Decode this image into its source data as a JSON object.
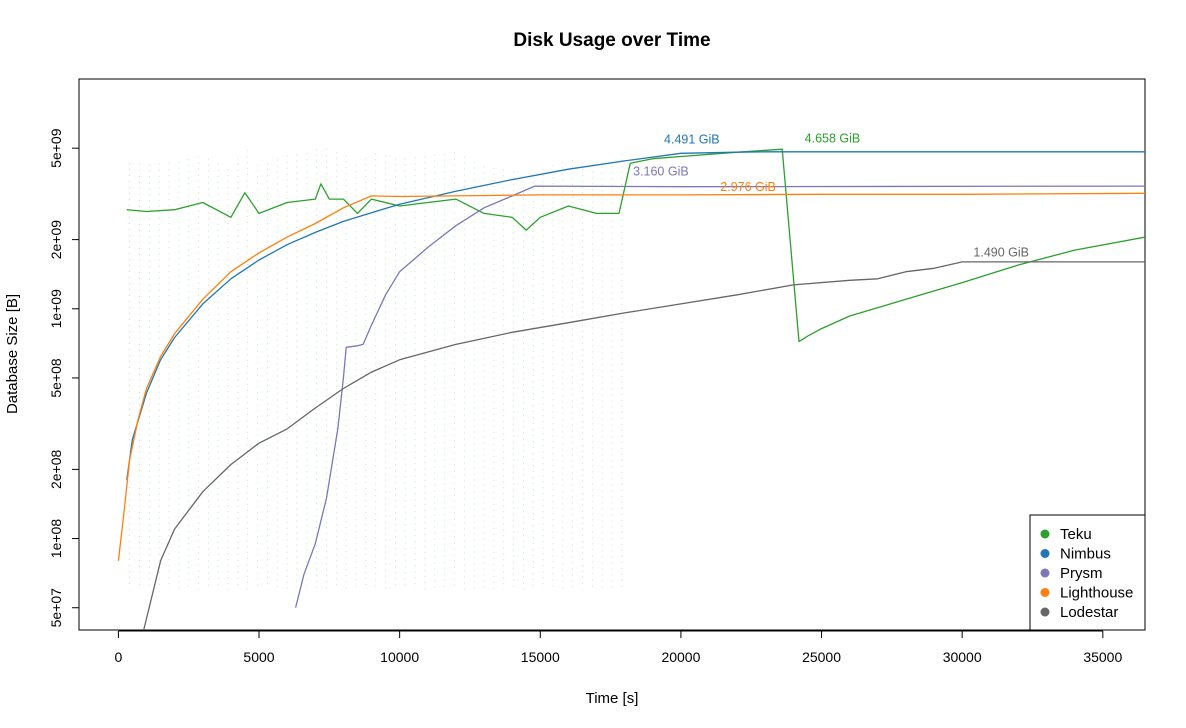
{
  "chart_data": {
    "type": "line",
    "title": "Disk Usage over Time",
    "xlabel": "Time [s]",
    "ylabel": "Database Size [B]",
    "xlim": [
      -1400,
      36500
    ],
    "ylim": [
      40000000,
      10000000000
    ],
    "yscale": "log",
    "grid": false,
    "legend_position": "bottom-right",
    "x_ticks": [
      {
        "value": 0,
        "label": "0"
      },
      {
        "value": 5000,
        "label": "5000"
      },
      {
        "value": 10000,
        "label": "10000"
      },
      {
        "value": 15000,
        "label": "15000"
      },
      {
        "value": 20000,
        "label": "20000"
      },
      {
        "value": 25000,
        "label": "25000"
      },
      {
        "value": 30000,
        "label": "30000"
      },
      {
        "value": 35000,
        "label": "35000"
      }
    ],
    "y_ticks": [
      {
        "value": 50000000,
        "label": "5e+07"
      },
      {
        "value": 100000000,
        "label": "1e+08"
      },
      {
        "value": 200000000,
        "label": "2e+08"
      },
      {
        "value": 500000000,
        "label": "5e+08"
      },
      {
        "value": 1000000000,
        "label": "1e+09"
      },
      {
        "value": 2000000000,
        "label": "2e+09"
      },
      {
        "value": 5000000000,
        "label": "5e+09"
      }
    ],
    "series": [
      {
        "name": "Teku",
        "color": "#2ca02c",
        "x": [
          300,
          1000,
          2000,
          3000,
          4000,
          4500,
          5000,
          6000,
          7000,
          7200,
          7500,
          8000,
          8500,
          9000,
          10000,
          11000,
          12000,
          13000,
          14000,
          14500,
          15000,
          16000,
          17000,
          17800,
          18200,
          19000,
          20000,
          22000,
          23600,
          24200,
          24500,
          25000,
          26000,
          28000,
          30000,
          32000,
          34000,
          36500
        ],
        "y": [
          2700000000,
          2650000000,
          2700000000,
          2900000000,
          2500000000,
          3200000000,
          2600000000,
          2900000000,
          3000000000,
          3500000000,
          3000000000,
          3000000000,
          2600000000,
          3000000000,
          2800000000,
          2900000000,
          3000000000,
          2600000000,
          2500000000,
          2200000000,
          2500000000,
          2800000000,
          2600000000,
          2600000000,
          4300000000,
          4500000000,
          4600000000,
          4800000000,
          4950000000,
          720000000,
          760000000,
          820000000,
          930000000,
          1100000000,
          1300000000,
          1550000000,
          1800000000,
          2050000000
        ]
      },
      {
        "name": "Nimbus",
        "color": "#1f77b4",
        "x": [
          300,
          500,
          1000,
          1500,
          2000,
          3000,
          4000,
          5000,
          6000,
          7000,
          8000,
          9000,
          10000,
          12000,
          14000,
          16000,
          18000,
          20000,
          22000,
          23000,
          36500
        ],
        "y": [
          180000000,
          270000000,
          430000000,
          600000000,
          750000000,
          1050000000,
          1350000000,
          1630000000,
          1900000000,
          2150000000,
          2400000000,
          2620000000,
          2850000000,
          3250000000,
          3650000000,
          4050000000,
          4400000000,
          4750000000,
          4800000000,
          4820000000,
          4820000000
        ]
      },
      {
        "name": "Prysm",
        "color": "#7b78b8",
        "x": [
          6300,
          6600,
          7000,
          7400,
          7800,
          8000,
          8100,
          8500,
          8700,
          9000,
          9500,
          10000,
          11000,
          12000,
          13000,
          14000,
          14800,
          20000,
          36500
        ],
        "y": [
          50000000,
          70000000,
          95000000,
          150000000,
          300000000,
          500000000,
          680000000,
          690000000,
          700000000,
          850000000,
          1150000000,
          1450000000,
          1850000000,
          2300000000,
          2750000000,
          3100000000,
          3420000000,
          3400000000,
          3420000000
        ]
      },
      {
        "name": "Lighthouse",
        "color": "#ff7f0e",
        "x": [
          0,
          200,
          400,
          700,
          1000,
          1500,
          2000,
          3000,
          4000,
          5000,
          6000,
          7000,
          8000,
          9000,
          10000,
          15000,
          20000,
          25000,
          30000,
          36500
        ],
        "y": [
          80000000,
          130000000,
          220000000,
          330000000,
          450000000,
          620000000,
          780000000,
          1100000000,
          1450000000,
          1750000000,
          2050000000,
          2350000000,
          2750000000,
          3100000000,
          3080000000,
          3130000000,
          3130000000,
          3150000000,
          3150000000,
          3180000000
        ]
      },
      {
        "name": "Lodestar",
        "color": "#666666",
        "x": [
          900,
          1500,
          2000,
          3000,
          4000,
          5000,
          6000,
          7000,
          8000,
          9000,
          10000,
          12000,
          14000,
          16000,
          18000,
          20000,
          22000,
          24000,
          26000,
          27000,
          28000,
          29000,
          30000,
          32000,
          36500
        ],
        "y": [
          40000000,
          80000000,
          110000000,
          160000000,
          210000000,
          260000000,
          300000000,
          370000000,
          450000000,
          530000000,
          600000000,
          700000000,
          790000000,
          870000000,
          960000000,
          1050000000,
          1150000000,
          1270000000,
          1330000000,
          1350000000,
          1450000000,
          1500000000,
          1600000000,
          1600000000,
          1600000000
        ]
      }
    ],
    "annotations": [
      {
        "text": "4.491 GiB",
        "series": "Nimbus",
        "x": 19400,
        "y": 5250000000
      },
      {
        "text": "4.658 GiB",
        "series": "Teku",
        "x": 24400,
        "y": 5300000000
      },
      {
        "text": "3.160 GiB",
        "series": "Prysm",
        "x": 18300,
        "y": 3800000000
      },
      {
        "text": "2.976 GiB",
        "series": "Lighthouse",
        "x": 21400,
        "y": 3250000000
      },
      {
        "text": "1.490 GiB",
        "series": "Lodestar",
        "x": 30400,
        "y": 1690000000
      }
    ]
  }
}
